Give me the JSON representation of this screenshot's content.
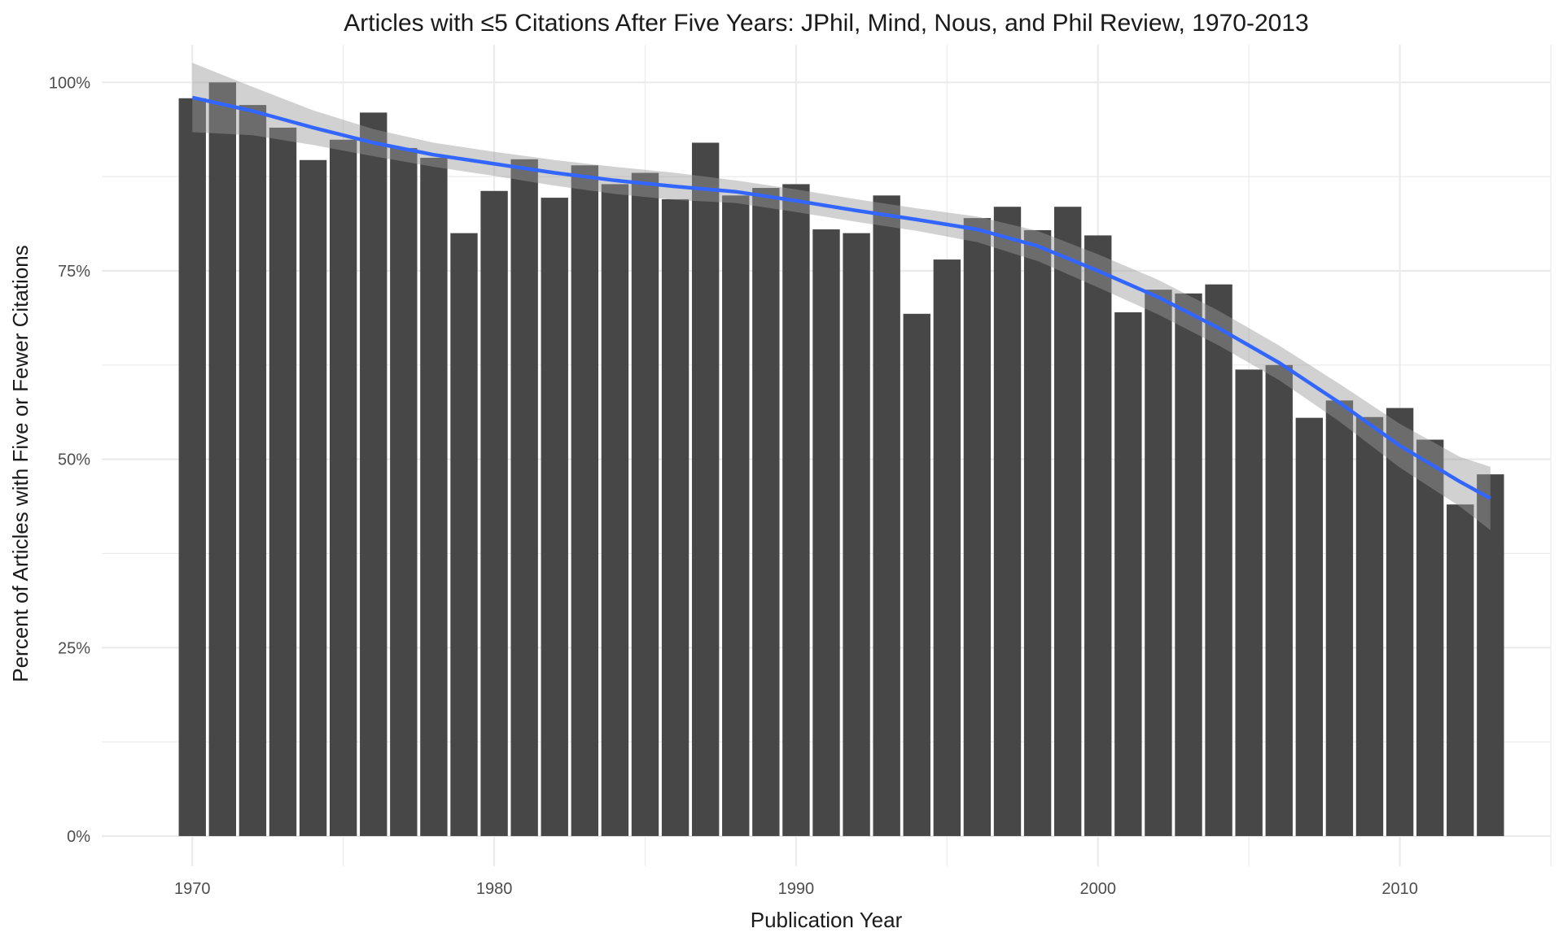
{
  "chart_data": {
    "type": "bar",
    "title": "Articles with ≤5 Citations After Five Years: JPhil, Mind, Nous, and Phil Review, 1970-2013",
    "xlabel": "Publication Year",
    "ylabel": "Percent of Articles with Five or Fewer Citations",
    "x_ticks": [
      "1970",
      "1980",
      "1990",
      "2000",
      "2010"
    ],
    "x_tick_values": [
      1970,
      1980,
      1990,
      2000,
      2010
    ],
    "y_ticks": [
      "0%",
      "25%",
      "50%",
      "75%",
      "100%"
    ],
    "y_tick_values": [
      0,
      25,
      50,
      75,
      100
    ],
    "xlim": [
      1967,
      2015
    ],
    "ylim": [
      -4,
      105
    ],
    "grid": true,
    "legend": "none",
    "colors": {
      "bars": "#474747",
      "smooth_line": "#3366ff",
      "confidence_band": "#999999",
      "grid": "#ebebeb"
    },
    "categories": [
      1970,
      1971,
      1972,
      1973,
      1974,
      1975,
      1976,
      1977,
      1978,
      1979,
      1980,
      1981,
      1982,
      1983,
      1984,
      1985,
      1986,
      1987,
      1988,
      1989,
      1990,
      1991,
      1992,
      1993,
      1994,
      1995,
      1996,
      1997,
      1998,
      1999,
      2000,
      2001,
      2002,
      2003,
      2004,
      2005,
      2006,
      2007,
      2008,
      2009,
      2010,
      2011,
      2012,
      2013
    ],
    "values": [
      97.9,
      100,
      97,
      94,
      89.7,
      92.4,
      96,
      91.3,
      90,
      80,
      85.6,
      89.8,
      84.7,
      89,
      86.5,
      88,
      84.5,
      92,
      85,
      86,
      86.5,
      80.5,
      80,
      85,
      69.3,
      76.5,
      82,
      83.5,
      80.4,
      83.5,
      79.7,
      69.5,
      72.5,
      72,
      73.2,
      61.9,
      62.5,
      55.5,
      57.8,
      55.6,
      56.8,
      52.6,
      44,
      48
    ],
    "smooth": {
      "x": [
        1970,
        1972,
        1974,
        1976,
        1978,
        1980,
        1982,
        1984,
        1986,
        1988,
        1990,
        1992,
        1994,
        1996,
        1998,
        2000,
        2002,
        2004,
        2006,
        2008,
        2010,
        2012,
        2013
      ],
      "y": [
        98,
        96.2,
        94,
        92,
        90.4,
        89.2,
        88,
        87,
        86.2,
        85.5,
        84.3,
        83,
        81.8,
        80.5,
        78.3,
        75,
        71.5,
        67.4,
        62.8,
        57.5,
        51.8,
        47,
        44.8
      ],
      "upper": [
        102.6,
        99.4,
        96.3,
        93.8,
        92,
        90.8,
        89.7,
        88.8,
        88,
        87,
        85.8,
        84.5,
        83.3,
        82.2,
        80.3,
        77.2,
        73.8,
        69.7,
        65.1,
        60,
        54.7,
        50.3,
        49
      ]
    }
  }
}
